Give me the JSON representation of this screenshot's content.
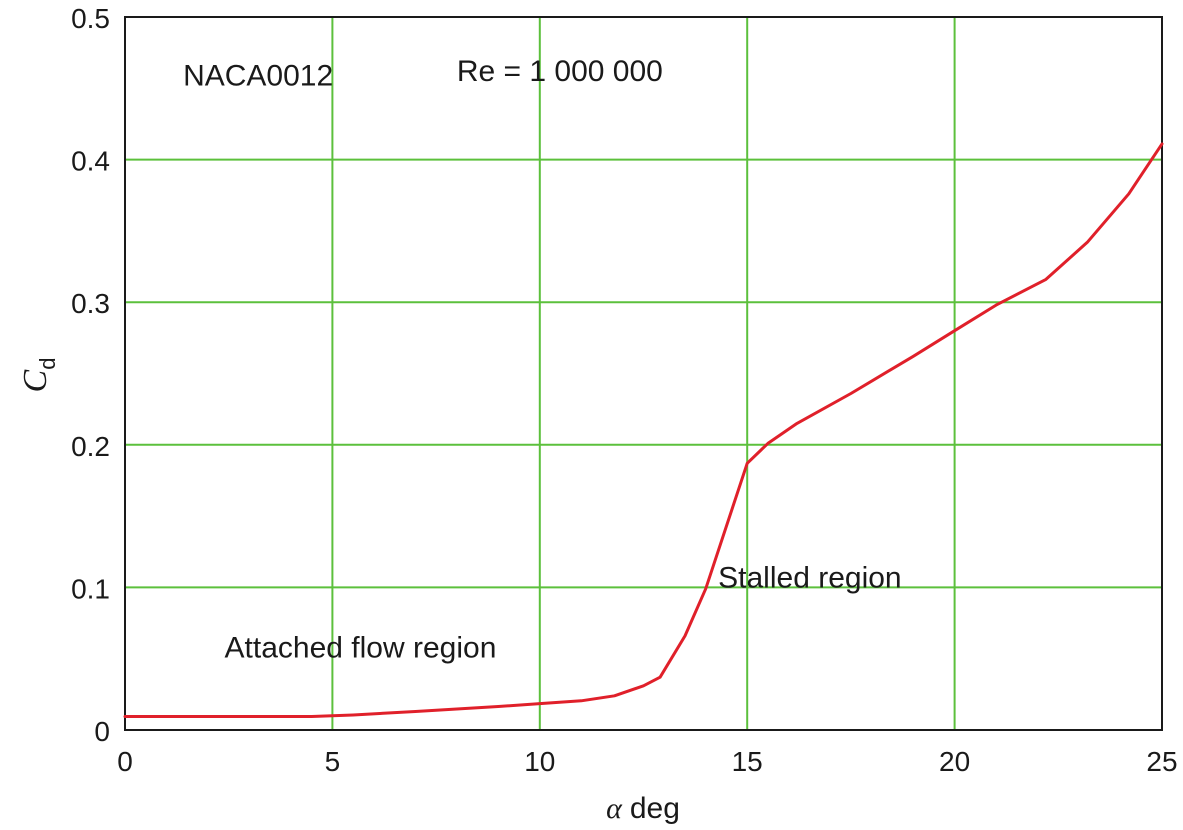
{
  "chart_data": {
    "type": "line",
    "title": "",
    "xlabel": "α deg",
    "xlabel_symbol": "α",
    "xlabel_unit": "deg",
    "ylabel_main": "C",
    "ylabel_sub": "d",
    "xlim": [
      0,
      25
    ],
    "ylim": [
      0,
      0.5
    ],
    "x_ticks": [
      0,
      5,
      10,
      15,
      20,
      25
    ],
    "y_ticks": [
      0,
      0.1,
      0.2,
      0.3,
      0.4,
      0.5
    ],
    "x_tick_labels": [
      "0",
      "5",
      "10",
      "15",
      "20",
      "25"
    ],
    "y_tick_labels": [
      "0",
      "0.1",
      "0.2",
      "0.3",
      "0.4",
      "0.5"
    ],
    "grid": true,
    "grid_color": "#5cc03c",
    "series": [
      {
        "line_color": "#e0202a",
        "x": [
          0,
          4.5,
          5.5,
          7,
          9,
          10,
          11,
          11.8,
          12.5,
          12.9,
          13.5,
          14,
          15,
          15.5,
          16.2,
          17.5,
          19,
          20,
          21,
          22.2,
          23.2,
          24.2,
          25
        ],
        "y": [
          0.0095,
          0.0095,
          0.0105,
          0.013,
          0.0165,
          0.0185,
          0.0205,
          0.024,
          0.031,
          0.037,
          0.066,
          0.099,
          0.187,
          0.201,
          0.215,
          0.236,
          0.262,
          0.28,
          0.298,
          0.316,
          0.342,
          0.376,
          0.411
        ]
      }
    ],
    "annotations": [
      {
        "text": "NACA0012",
        "x": 1.4,
        "y": 0.452
      },
      {
        "text": "Re = 1 000 000",
        "x": 8.0,
        "y": 0.455
      },
      {
        "text": "Stalled region",
        "x": 14.3,
        "y": 0.1
      },
      {
        "text": "Attached flow region",
        "x": 2.4,
        "y": 0.051
      }
    ]
  }
}
